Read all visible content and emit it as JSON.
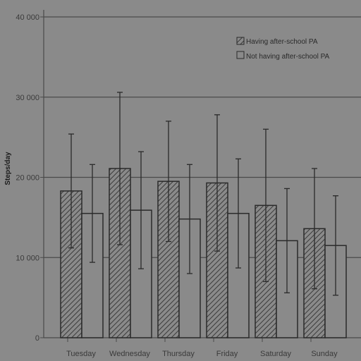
{
  "chart_data": {
    "type": "bar",
    "title": "",
    "xlabel": "",
    "ylabel": "Steps/day",
    "ylim": [
      0,
      40000
    ],
    "yticks": [
      0,
      10000,
      20000,
      30000,
      40000
    ],
    "ytick_labels": [
      "0",
      "10 000",
      "20 000",
      "30 000",
      "40 000"
    ],
    "grid": true,
    "legend_position": "top-right",
    "categories": [
      "Tuesday",
      "Wednesday",
      "Thursday",
      "Friday",
      "Saturday",
      "Sunday"
    ],
    "series": [
      {
        "name": "Having after-school PA",
        "pattern": "hatched",
        "values": [
          18300,
          21100,
          19500,
          19300,
          16500,
          13600
        ],
        "error": [
          7100,
          9500,
          7500,
          8500,
          9500,
          7500
        ]
      },
      {
        "name": "Not having after-school PA",
        "pattern": "plain",
        "values": [
          15500,
          15900,
          14800,
          15500,
          12100,
          11500
        ],
        "error": [
          6100,
          7300,
          6800,
          6800,
          6500,
          6200
        ]
      }
    ]
  },
  "colors": {
    "background": "#8a8a8a",
    "grid": "#4a4a4a",
    "bar_edge": "#2a2a2a",
    "hatch": "#3a3a3a",
    "error_bar": "#2a2a2a"
  }
}
